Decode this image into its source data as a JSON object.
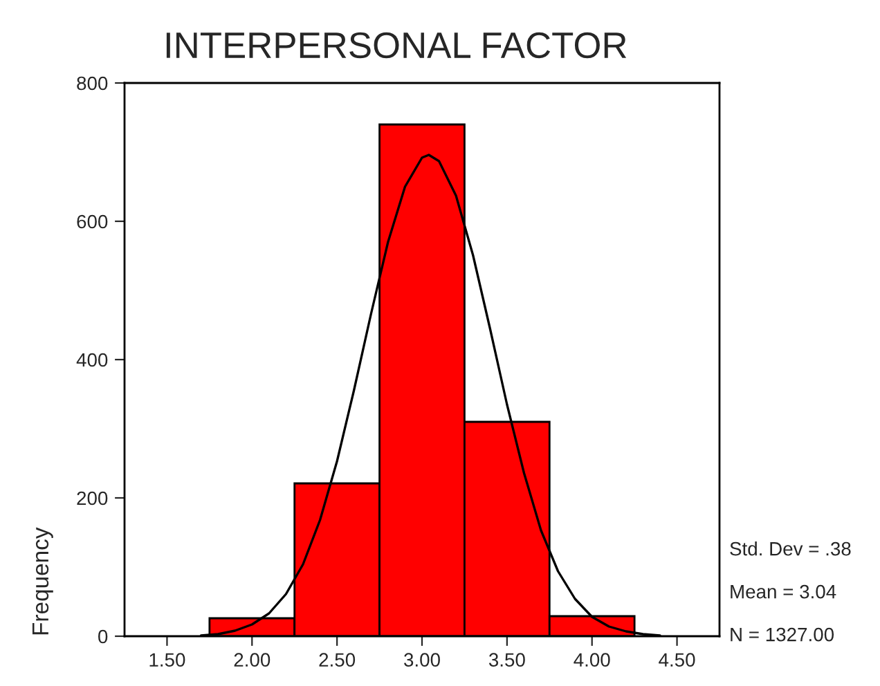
{
  "chart_data": {
    "type": "histogram",
    "title": "INTERPERSONAL FACTOR",
    "ylabel": "Frequency",
    "series": [
      {
        "bins": [
          1.75,
          2.25,
          2.75,
          3.25,
          3.75,
          4.25
        ],
        "values": [
          26,
          221,
          740,
          310,
          29
        ],
        "color": "#ff0000"
      },
      {
        "type": "line",
        "color": "#000000",
        "x": [
          1.7,
          1.8,
          1.9,
          2.0,
          2.1,
          2.2,
          2.3,
          2.4,
          2.5,
          2.6,
          2.7,
          2.8,
          2.9,
          3.0,
          3.04,
          3.1,
          3.2,
          3.3,
          3.4,
          3.5,
          3.6,
          3.7,
          3.8,
          3.9,
          4.0,
          4.1,
          4.2,
          4.3,
          4.4
        ],
        "values": [
          1,
          3,
          8,
          17,
          33,
          61,
          104,
          168,
          253,
          356,
          466,
          570,
          650,
          692,
          696,
          687,
          637,
          551,
          445,
          335,
          236,
          153,
          94,
          54,
          28,
          14,
          7,
          3,
          1
        ]
      }
    ],
    "xlim": [
      1.25,
      4.75
    ],
    "xticks": [
      {
        "value": 1.5,
        "label": "1.50"
      },
      {
        "value": 2.0,
        "label": "2.00"
      },
      {
        "value": 2.5,
        "label": "2.50"
      },
      {
        "value": 3.0,
        "label": "3.00"
      },
      {
        "value": 3.5,
        "label": "3.50"
      },
      {
        "value": 4.0,
        "label": "4.00"
      },
      {
        "value": 4.5,
        "label": "4.50"
      }
    ],
    "ylim": [
      0,
      800
    ],
    "yticks": [
      0,
      200,
      400,
      600,
      800
    ],
    "annotations": [
      "Std. Dev = .38",
      "Mean = 3.04",
      "N = 1327.00"
    ]
  }
}
